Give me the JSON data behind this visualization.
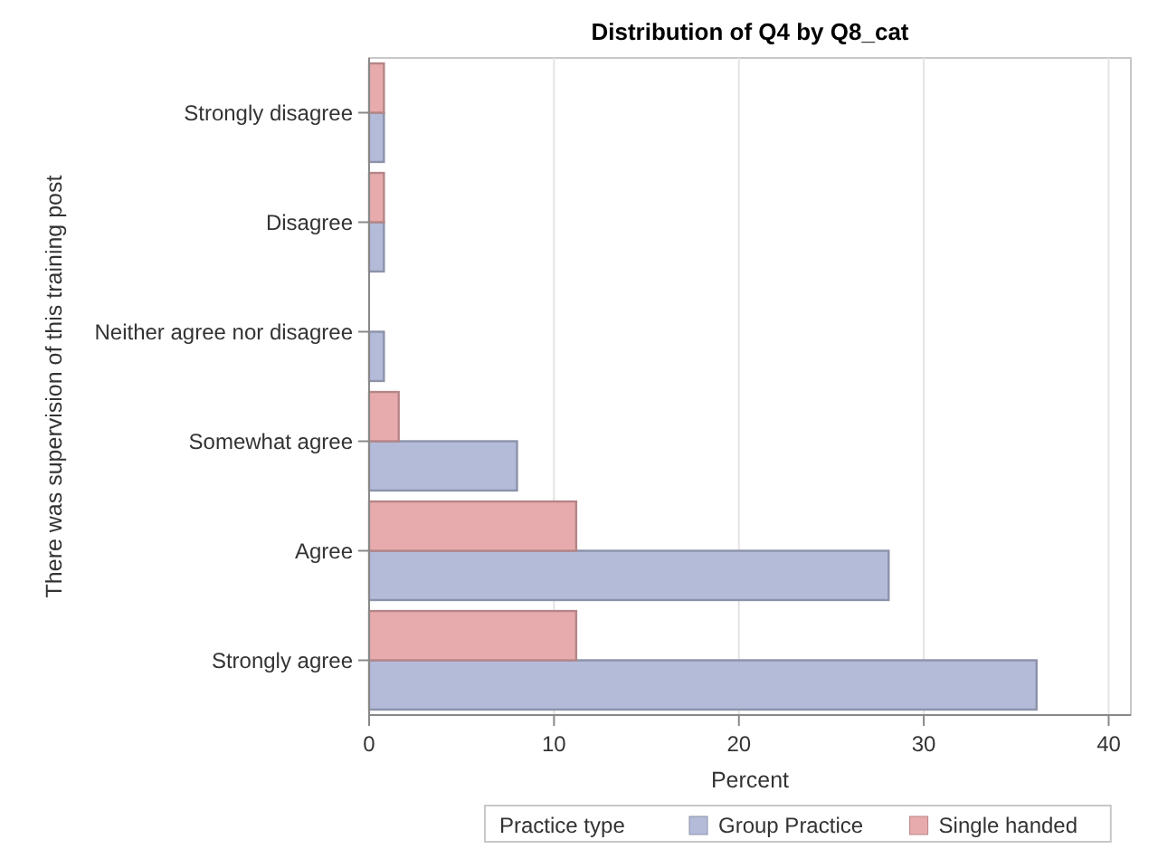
{
  "chart_data": {
    "type": "bar",
    "orientation": "horizontal",
    "title": "Distribution of Q4 by Q8_cat",
    "xlabel": "Percent",
    "ylabel": "There was supervision of this training post",
    "legend_title": "Practice type",
    "categories": [
      "Strongly disagree",
      "Disagree",
      "Neither agree nor disagree",
      "Somewhat agree",
      "Agree",
      "Strongly agree"
    ],
    "series": [
      {
        "name": "Group Practice",
        "color": "#b4bbd9",
        "values": [
          0.8,
          0.8,
          0.8,
          8.0,
          28.1,
          36.1
        ]
      },
      {
        "name": "Single handed",
        "color": "#e8abad",
        "values": [
          0.8,
          0.8,
          null,
          1.6,
          11.2,
          11.2
        ]
      }
    ],
    "xlim": [
      0,
      41.2
    ],
    "xticks": [
      0,
      10,
      20,
      30,
      40
    ],
    "grid": "x",
    "legend": "bottom"
  }
}
